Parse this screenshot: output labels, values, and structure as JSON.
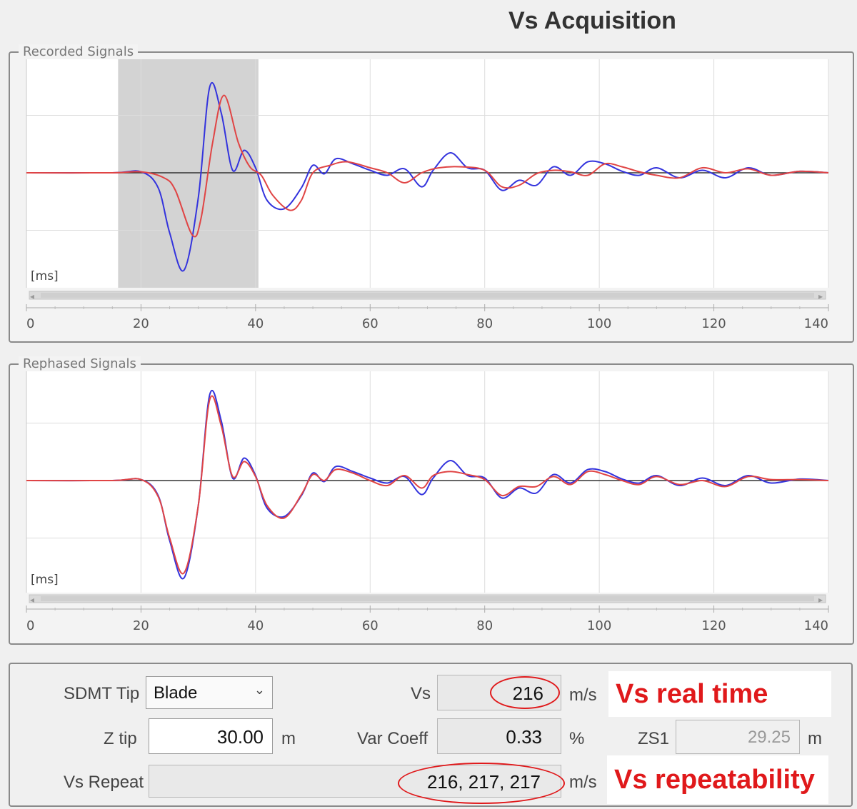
{
  "title": "Vs Acquisition",
  "charts": [
    {
      "legend": "Recorded Signals",
      "unit_label": "[ms]",
      "xticks": [
        "0",
        "20",
        "40",
        "60",
        "80",
        "100",
        "120",
        "140"
      ],
      "highlight_x": [
        16,
        40.5
      ]
    },
    {
      "legend": "Rephased Signals",
      "unit_label": "[ms]",
      "xticks": [
        "0",
        "20",
        "40",
        "60",
        "80",
        "100",
        "120",
        "140"
      ]
    }
  ],
  "chart_data": [
    {
      "type": "line",
      "title": "Recorded Signals",
      "xlabel": "[ms]",
      "xlim": [
        0,
        140
      ],
      "ylim": [
        -2,
        2
      ],
      "highlight_range": [
        16,
        40.5
      ],
      "grid": true,
      "series": [
        {
          "color": "#3333dd",
          "x": [
            0,
            15,
            20,
            23,
            25,
            27.5,
            30,
            32,
            34,
            36,
            38,
            40,
            42,
            45,
            48,
            50,
            52,
            54,
            57,
            60,
            63,
            66,
            69,
            71,
            74,
            77,
            80,
            83,
            86,
            89,
            92,
            95,
            98,
            101,
            104,
            107,
            110,
            114,
            118,
            122,
            126,
            130,
            135,
            140
          ],
          "y": [
            0,
            0,
            0.02,
            -0.3,
            -1.2,
            -1.95,
            -0.5,
            1.72,
            1.2,
            0.05,
            0.45,
            0.1,
            -0.55,
            -0.72,
            -0.3,
            0.15,
            -0.02,
            0.28,
            0.18,
            0.05,
            -0.05,
            0.08,
            -0.28,
            0.05,
            0.4,
            0.1,
            0.05,
            -0.35,
            -0.15,
            -0.25,
            0.12,
            -0.05,
            0.22,
            0.18,
            0.03,
            -0.05,
            0.1,
            -0.1,
            0.05,
            -0.1,
            0.1,
            -0.05,
            0.03,
            0
          ]
        },
        {
          "color": "#e04444",
          "x": [
            0,
            15,
            20,
            24,
            26,
            29,
            30.5,
            32.5,
            34.5,
            37,
            39,
            41,
            43,
            46,
            48,
            50,
            53,
            56,
            60,
            63,
            66,
            69,
            72,
            76,
            80,
            83,
            86,
            89,
            92,
            95,
            98,
            101,
            104,
            107,
            110,
            114,
            118,
            122,
            126,
            130,
            135,
            140
          ],
          "y": [
            0,
            0,
            0.02,
            -0.1,
            -0.35,
            -1.25,
            -0.9,
            0.6,
            1.55,
            0.6,
            0.12,
            -0.05,
            -0.45,
            -0.75,
            -0.55,
            0.0,
            0.15,
            0.22,
            0.1,
            0.0,
            -0.2,
            0.0,
            0.1,
            0.12,
            0.05,
            -0.28,
            -0.25,
            -0.02,
            0.05,
            0.02,
            -0.05,
            0.18,
            0.12,
            0.02,
            -0.05,
            -0.1,
            0.1,
            0.0,
            0.08,
            -0.05,
            0.03,
            0
          ]
        }
      ]
    },
    {
      "type": "line",
      "title": "Rephased Signals",
      "xlabel": "[ms]",
      "xlim": [
        0,
        140
      ],
      "ylim": [
        -2,
        2
      ],
      "grid": true,
      "series": [
        {
          "color": "#3333dd",
          "x": [
            0,
            15,
            20,
            23,
            25,
            27.5,
            30,
            32,
            34,
            36,
            38,
            40,
            42,
            45,
            48,
            50,
            52,
            54,
            57,
            60,
            63,
            66,
            69,
            71,
            74,
            77,
            80,
            83,
            86,
            89,
            92,
            95,
            98,
            101,
            104,
            107,
            110,
            114,
            118,
            122,
            126,
            130,
            135,
            140
          ],
          "y": [
            0,
            0,
            0.02,
            -0.3,
            -1.2,
            -1.95,
            -0.5,
            1.72,
            1.2,
            0.05,
            0.45,
            0.1,
            -0.55,
            -0.72,
            -0.3,
            0.15,
            -0.02,
            0.28,
            0.18,
            0.05,
            -0.05,
            0.08,
            -0.28,
            0.05,
            0.4,
            0.1,
            0.05,
            -0.35,
            -0.15,
            -0.25,
            0.12,
            -0.05,
            0.22,
            0.18,
            0.03,
            -0.05,
            0.1,
            -0.1,
            0.05,
            -0.1,
            0.1,
            -0.05,
            0.03,
            0
          ]
        },
        {
          "color": "#e04444",
          "x": [
            0,
            15,
            20,
            23,
            25,
            27.5,
            30,
            32,
            34,
            36,
            38,
            40,
            42,
            45,
            48,
            50,
            52,
            54,
            57,
            60,
            63,
            66,
            69,
            71,
            74,
            77,
            80,
            83,
            86,
            89,
            92,
            95,
            98,
            101,
            104,
            107,
            110,
            114,
            118,
            122,
            126,
            130,
            135,
            140
          ],
          "y": [
            0,
            0,
            0.02,
            -0.32,
            -1.15,
            -1.85,
            -0.5,
            1.62,
            1.1,
            0.08,
            0.38,
            0.08,
            -0.5,
            -0.75,
            -0.28,
            0.12,
            0.0,
            0.22,
            0.15,
            0.0,
            -0.1,
            0.1,
            -0.15,
            0.1,
            0.18,
            0.12,
            0.02,
            -0.3,
            -0.12,
            -0.12,
            0.08,
            -0.08,
            0.18,
            0.12,
            0.0,
            -0.08,
            0.08,
            -0.08,
            0.0,
            -0.12,
            0.08,
            0.02,
            0.02,
            0
          ]
        }
      ]
    }
  ],
  "panel": {
    "sdmt_tip_label": "SDMT Tip",
    "sdmt_tip_value": "Blade",
    "z_tip_label": "Z tip",
    "z_tip_value": "30.00",
    "z_tip_unit": "m",
    "vs_repeat_label": "Vs Repeat",
    "vs_repeat_value": "216, 217, 217",
    "vs_repeat_unit": "m/s",
    "vs_label": "Vs",
    "vs_value": "216",
    "vs_unit": "m/s",
    "var_coeff_label": "Var Coeff",
    "var_coeff_value": "0.33",
    "var_coeff_unit": "%",
    "zs1_label": "ZS1",
    "zs1_value": "29.25",
    "zs1_unit": "m"
  },
  "annotations": {
    "realtime": "Vs real time",
    "repeatability": "Vs repeatability"
  },
  "colors": {
    "annotation": "#e0191b",
    "blue_series": "#3333dd",
    "red_series": "#e04444",
    "highlight": "#d3d3d3"
  }
}
